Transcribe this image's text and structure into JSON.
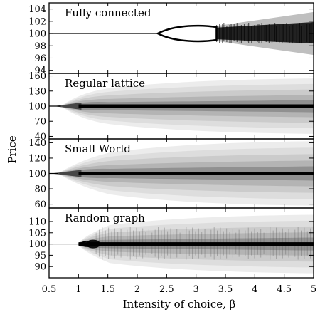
{
  "chart_data": [
    {
      "type": "heatmap",
      "title": "Fully connected",
      "xlim": [
        0.5,
        5
      ],
      "ylim": [
        93.5,
        105
      ],
      "yticks": [
        94,
        96,
        98,
        100,
        102,
        104
      ],
      "fixed_price": 100,
      "bifurcation_beta": 2.35,
      "chaos_beta": 3.3,
      "spread_at_beta5": [
        96.5,
        103.5
      ]
    },
    {
      "type": "heatmap",
      "title": "Regular lattice",
      "xlim": [
        0.5,
        5
      ],
      "ylim": [
        35,
        165
      ],
      "yticks": [
        40,
        70,
        100,
        130,
        160
      ],
      "fixed_price": 100,
      "onset_beta": 0.7,
      "spread_at_beta5": [
        45,
        155
      ]
    },
    {
      "type": "heatmap",
      "title": "Small World",
      "xlim": [
        0.5,
        5
      ],
      "ylim": [
        55,
        145
      ],
      "yticks": [
        60,
        80,
        100,
        120,
        140
      ],
      "fixed_price": 100,
      "onset_beta": 0.65,
      "spread_at_beta5": [
        58,
        142
      ]
    },
    {
      "type": "heatmap",
      "title": "Random graph",
      "xlim": [
        0.5,
        5
      ],
      "ylim": [
        85,
        116
      ],
      "yticks": [
        90,
        95,
        100,
        105,
        110
      ],
      "fixed_price": 100,
      "onset_beta": 1.0,
      "spread_at_beta5": [
        87,
        113
      ]
    }
  ],
  "axes": {
    "xlabel": "Intensity of choice, β",
    "ylabel": "Price",
    "xticks": [
      "0.5",
      "1",
      "1.5",
      "2",
      "2.5",
      "3",
      "3.5",
      "4",
      "4.5",
      "5"
    ]
  }
}
